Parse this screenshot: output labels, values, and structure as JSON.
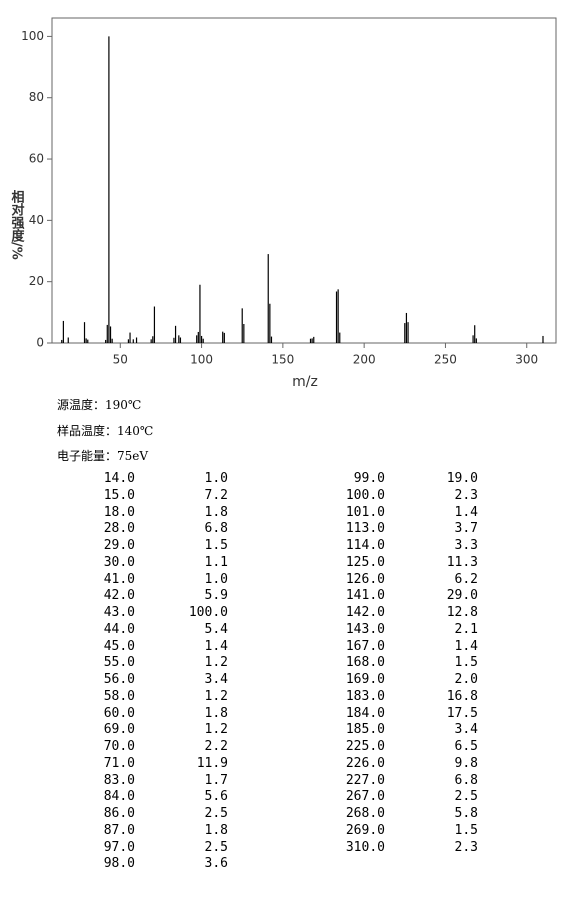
{
  "chart_data": {
    "type": "bar",
    "xlabel": "m/z",
    "ylabel": "相对强度/%",
    "x": [
      14,
      15,
      18,
      28,
      29,
      30,
      41,
      42,
      43,
      44,
      45,
      55,
      56,
      58,
      60,
      69,
      70,
      71,
      83,
      84,
      86,
      87,
      97,
      98,
      99,
      100,
      101,
      113,
      114,
      125,
      126,
      141,
      142,
      143,
      167,
      168,
      169,
      183,
      184,
      185,
      225,
      226,
      227,
      267,
      268,
      269,
      310
    ],
    "values": [
      1.0,
      7.2,
      1.8,
      6.8,
      1.5,
      1.1,
      1.0,
      5.9,
      100,
      5.4,
      1.4,
      1.2,
      3.4,
      1.2,
      1.8,
      1.2,
      2.2,
      11.9,
      1.7,
      5.6,
      2.5,
      1.8,
      2.5,
      3.6,
      19.0,
      2.3,
      1.4,
      3.7,
      3.3,
      11.3,
      6.2,
      29.0,
      12.8,
      2.1,
      1.4,
      1.5,
      2.0,
      16.8,
      17.5,
      3.4,
      6.5,
      9.8,
      6.8,
      2.5,
      5.8,
      1.5,
      2.3
    ],
    "color": "#000000",
    "xlim": [
      8,
      318
    ],
    "xticks": [
      50,
      100,
      150,
      200,
      250,
      300
    ],
    "ylim": [
      0,
      106
    ],
    "yticks": [
      0,
      20,
      40,
      60,
      80,
      100
    ]
  },
  "info": [
    "源温度：190℃",
    "样品温度：140℃",
    "电子能量：75eV"
  ],
  "peak_table": {
    "left": [
      [
        "14.0",
        "1.0"
      ],
      [
        "15.0",
        "7.2"
      ],
      [
        "18.0",
        "1.8"
      ],
      [
        "28.0",
        "6.8"
      ],
      [
        "29.0",
        "1.5"
      ],
      [
        "30.0",
        "1.1"
      ],
      [
        "41.0",
        "1.0"
      ],
      [
        "42.0",
        "5.9"
      ],
      [
        "43.0",
        "100.0"
      ],
      [
        "44.0",
        "5.4"
      ],
      [
        "45.0",
        "1.4"
      ],
      [
        "55.0",
        "1.2"
      ],
      [
        "56.0",
        "3.4"
      ],
      [
        "58.0",
        "1.2"
      ],
      [
        "60.0",
        "1.8"
      ],
      [
        "69.0",
        "1.2"
      ],
      [
        "70.0",
        "2.2"
      ],
      [
        "71.0",
        "11.9"
      ],
      [
        "83.0",
        "1.7"
      ],
      [
        "84.0",
        "5.6"
      ],
      [
        "86.0",
        "2.5"
      ],
      [
        "87.0",
        "1.8"
      ],
      [
        "97.0",
        "2.5"
      ],
      [
        "98.0",
        "3.6"
      ]
    ],
    "right": [
      [
        "99.0",
        "19.0"
      ],
      [
        "100.0",
        "2.3"
      ],
      [
        "101.0",
        "1.4"
      ],
      [
        "113.0",
        "3.7"
      ],
      [
        "114.0",
        "3.3"
      ],
      [
        "125.0",
        "11.3"
      ],
      [
        "126.0",
        "6.2"
      ],
      [
        "141.0",
        "29.0"
      ],
      [
        "142.0",
        "12.8"
      ],
      [
        "143.0",
        "2.1"
      ],
      [
        "167.0",
        "1.4"
      ],
      [
        "168.0",
        "1.5"
      ],
      [
        "169.0",
        "2.0"
      ],
      [
        "183.0",
        "16.8"
      ],
      [
        "184.0",
        "17.5"
      ],
      [
        "185.0",
        "3.4"
      ],
      [
        "225.0",
        "6.5"
      ],
      [
        "226.0",
        "9.8"
      ],
      [
        "227.0",
        "6.8"
      ],
      [
        "267.0",
        "2.5"
      ],
      [
        "268.0",
        "5.8"
      ],
      [
        "269.0",
        "1.5"
      ],
      [
        "310.0",
        "2.3"
      ]
    ]
  }
}
